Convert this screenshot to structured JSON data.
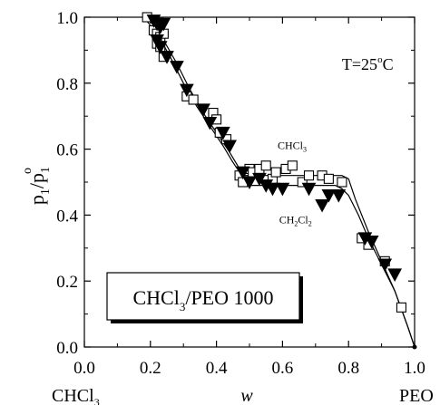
{
  "chart_data": {
    "type": "scatter",
    "title": "",
    "xlabel": "w",
    "ylabel": "p1/p1o",
    "xlim": [
      0.0,
      1.0
    ],
    "ylim": [
      0.0,
      1.0
    ],
    "x_ticks": [
      0.0,
      0.2,
      0.4,
      0.6,
      0.8,
      1.0
    ],
    "x_tick_labels": [
      "0.0",
      "0.2",
      "0.4",
      "0.6",
      "0.8",
      "1.0"
    ],
    "y_ticks": [
      0.0,
      0.2,
      0.4,
      0.6,
      0.8,
      1.0
    ],
    "y_tick_labels": [
      "0.0",
      "0.2",
      "0.4",
      "0.6",
      "0.8",
      "1.0"
    ],
    "x_left_end_label": "CHCl",
    "x_left_end_sub": "3",
    "x_right_end_label": "PEO",
    "ylabel_parts": {
      "base": "p",
      "sub": "1",
      "slash": "/p",
      "sub2": "1",
      "sup": "o"
    },
    "grid": false,
    "annotations": {
      "temperature": {
        "prefix": "T=25",
        "sup": "o",
        "suffix": "C",
        "x": 0.78,
        "y": 0.84
      },
      "chcl3_label": {
        "base": "CHCl",
        "sub": "3",
        "x": 0.585,
        "y": 0.6
      },
      "ch2cl2_label": {
        "base": "CH",
        "sub1": "2",
        "mid": "Cl",
        "sub2": "2",
        "x": 0.59,
        "y": 0.375
      }
    },
    "legend_box": {
      "base": "CHCl",
      "sub": "3",
      "suffix": "/PEO 1000"
    },
    "series": [
      {
        "label_ref": "CHCl3",
        "marker": "open-square",
        "x": [
          0.19,
          0.21,
          0.22,
          0.23,
          0.24,
          0.22,
          0.23,
          0.24,
          0.31,
          0.33,
          0.39,
          0.4,
          0.41,
          0.43,
          0.47,
          0.48,
          0.5,
          0.51,
          0.53,
          0.55,
          0.57,
          0.58,
          0.61,
          0.63,
          0.66,
          0.68,
          0.72,
          0.74,
          0.78,
          0.84,
          0.86,
          0.91,
          0.96
        ],
        "y": [
          1.0,
          0.96,
          0.95,
          0.94,
          0.95,
          0.92,
          0.91,
          0.88,
          0.76,
          0.75,
          0.71,
          0.69,
          0.65,
          0.63,
          0.52,
          0.5,
          0.54,
          0.53,
          0.54,
          0.55,
          0.51,
          0.53,
          0.54,
          0.55,
          0.5,
          0.52,
          0.52,
          0.51,
          0.5,
          0.33,
          0.31,
          0.26,
          0.12
        ]
      },
      {
        "label_ref": "CH2Cl2",
        "marker": "filled-down-triangle",
        "x": [
          0.21,
          0.22,
          0.23,
          0.24,
          0.22,
          0.23,
          0.25,
          0.28,
          0.31,
          0.36,
          0.38,
          0.42,
          0.44,
          0.48,
          0.5,
          0.53,
          0.55,
          0.57,
          0.6,
          0.68,
          0.72,
          0.74,
          0.77,
          0.85,
          0.87,
          0.91,
          0.94
        ],
        "y": [
          0.99,
          0.98,
          0.97,
          0.98,
          0.93,
          0.91,
          0.88,
          0.85,
          0.78,
          0.72,
          0.68,
          0.65,
          0.61,
          0.53,
          0.5,
          0.51,
          0.49,
          0.48,
          0.48,
          0.48,
          0.43,
          0.46,
          0.46,
          0.33,
          0.32,
          0.25,
          0.22
        ]
      }
    ],
    "fit_curves": [
      {
        "ref": "CHCl3",
        "x": [
          0.18,
          0.22,
          0.26,
          0.3,
          0.34,
          0.38,
          0.42,
          0.45,
          0.47,
          0.48,
          0.5,
          0.6,
          0.7,
          0.78,
          0.8,
          0.82,
          0.86,
          0.9,
          0.94,
          0.98,
          1.0
        ],
        "y": [
          1.0,
          0.95,
          0.88,
          0.8,
          0.73,
          0.67,
          0.61,
          0.56,
          0.53,
          0.52,
          0.52,
          0.52,
          0.52,
          0.52,
          0.51,
          0.45,
          0.35,
          0.26,
          0.17,
          0.06,
          0.0
        ]
      },
      {
        "ref": "CH2Cl2",
        "x": [
          0.2,
          0.24,
          0.28,
          0.32,
          0.36,
          0.4,
          0.44,
          0.47,
          0.49,
          0.5,
          0.6,
          0.7,
          0.76,
          0.78,
          0.8,
          0.83,
          0.86,
          0.9,
          0.94,
          0.98,
          1.0
        ],
        "y": [
          1.0,
          0.93,
          0.86,
          0.78,
          0.71,
          0.65,
          0.59,
          0.54,
          0.5,
          0.49,
          0.49,
          0.49,
          0.49,
          0.48,
          0.46,
          0.4,
          0.33,
          0.25,
          0.17,
          0.06,
          0.0
        ]
      }
    ]
  }
}
